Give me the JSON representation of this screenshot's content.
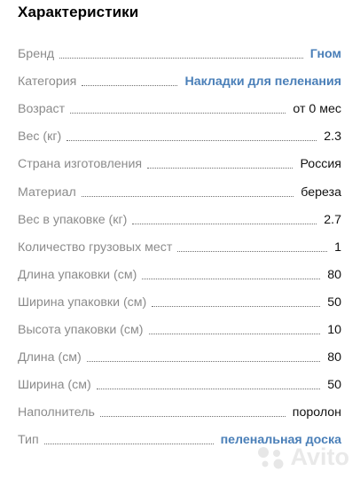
{
  "header": {
    "title": "Характеристики"
  },
  "specs": [
    {
      "label": "Бренд",
      "value": "Гном"
    },
    {
      "label": "Категория",
      "value": "Накладки для пеленания"
    },
    {
      "label": "Возраст",
      "value": "от 0 мес"
    },
    {
      "label": "Вес (кг)",
      "value": "2.3"
    },
    {
      "label": "Страна изготовления",
      "value": "Россия"
    },
    {
      "label": "Материал",
      "value": "береза"
    },
    {
      "label": "Вес в упаковке (кг)",
      "value": "2.7"
    },
    {
      "label": "Количество грузовых мест",
      "value": "1"
    },
    {
      "label": "Длина упаковки (см)",
      "value": "80"
    },
    {
      "label": "Ширина упаковки (см)",
      "value": "50"
    },
    {
      "label": "Высота упаковки (см)",
      "value": "10"
    },
    {
      "label": "Длина (см)",
      "value": "80"
    },
    {
      "label": "Ширина (см)",
      "value": "50"
    },
    {
      "label": "Наполнитель",
      "value": "поролон"
    },
    {
      "label": "Тип",
      "value": "пеленальная доска"
    }
  ],
  "watermark": {
    "text": "Avito",
    "icon": "avito-logo-icon"
  },
  "colors": {
    "link": "#4a7fb8",
    "label": "#8b8b8b",
    "value": "#111111"
  }
}
